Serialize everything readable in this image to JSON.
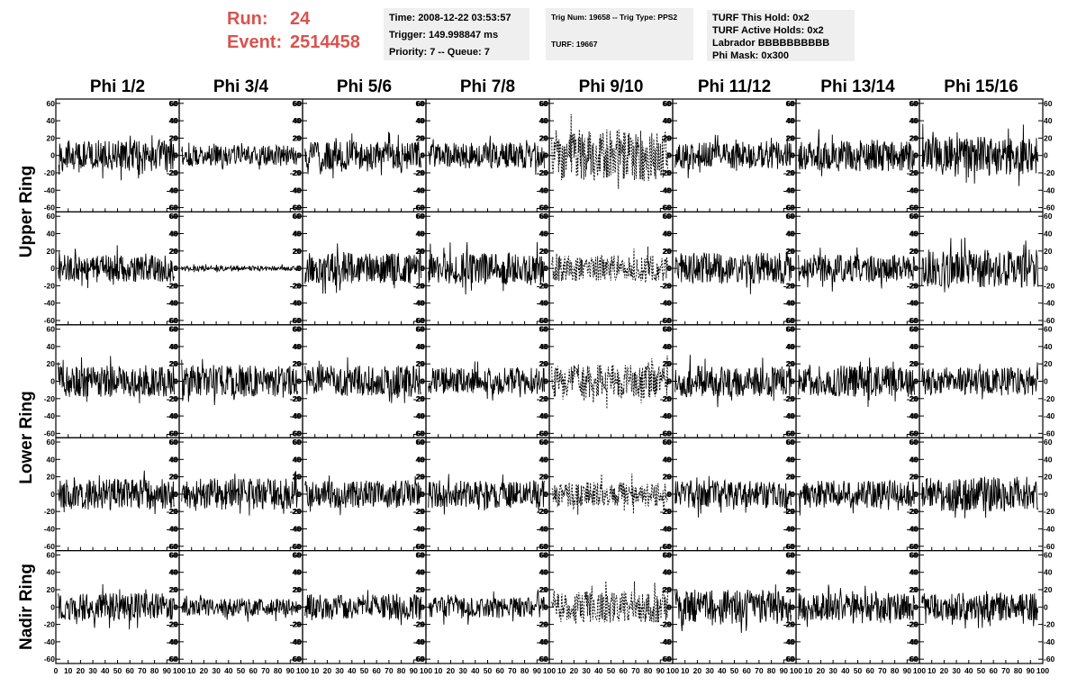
{
  "header": {
    "run_label": "Run:",
    "run_value": "24",
    "event_label": "Event:",
    "event_value": "2514458"
  },
  "info_time": {
    "time": "Time: 2008-12-22 03:53:57",
    "trigger": "Trigger: 149.998847 ms",
    "priority": "Priority: 7 -- Queue: 7"
  },
  "info_trig": {
    "trig": "Trig Num: 19658 -- Trig Type: PPS2",
    "turf": "TURF: 19667"
  },
  "info_turf": {
    "hold": "TURF This Hold: 0x2",
    "active": "TURF Active Holds: 0x2",
    "labrador": "Labrador BBBBBBBBBB",
    "mask": "Phi Mask: 0x300"
  },
  "chart_data": {
    "type": "line",
    "columns": [
      "Phi 1/2",
      "Phi 3/4",
      "Phi 5/6",
      "Phi 7/8",
      "Phi 9/10",
      "Phi 11/12",
      "Phi 13/14",
      "Phi 15/16"
    ],
    "rows": [
      "Upper Ring",
      "Lower Ring",
      "Nadir Ring"
    ],
    "panel_rows": 5,
    "xlim": [
      0,
      100
    ],
    "ylim": [
      -65,
      65
    ],
    "x_ticks": [
      0,
      10,
      20,
      30,
      40,
      50,
      60,
      70,
      80,
      90,
      100
    ],
    "y_ticks": [
      -60,
      -40,
      -20,
      0,
      20,
      40,
      60
    ],
    "x_tick_labels": [
      "0",
      "10",
      "20",
      "30",
      "40",
      "50",
      "60",
      "70",
      "80",
      "90",
      "100"
    ],
    "y_tick_labels": [
      "-60",
      "-40",
      "-20",
      "0",
      "20",
      "40",
      "60"
    ],
    "amplitudes": [
      [
        18,
        12,
        16,
        15,
        30,
        16,
        18,
        22
      ],
      [
        16,
        3,
        18,
        18,
        15,
        18,
        16,
        22
      ],
      [
        18,
        18,
        18,
        16,
        20,
        18,
        18,
        16
      ],
      [
        18,
        18,
        16,
        16,
        14,
        16,
        16,
        20
      ],
      [
        16,
        10,
        15,
        12,
        18,
        20,
        16,
        16
      ]
    ],
    "dashed_column": 4,
    "grid": false,
    "legend": "none"
  }
}
